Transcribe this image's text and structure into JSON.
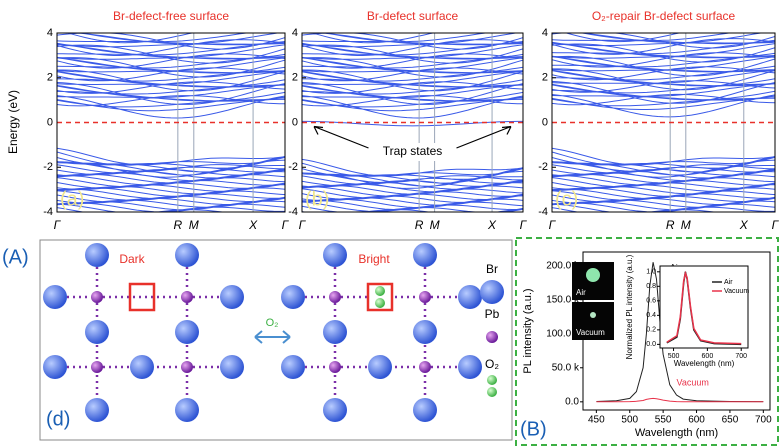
{
  "panel_A": {
    "label": "(A)",
    "ylabel": "Energy (eV)",
    "ylim": [
      -4,
      4
    ],
    "yticks": [
      -4,
      -2,
      0,
      2,
      4
    ],
    "kpoints": [
      "Γ",
      "R",
      "M",
      "X",
      "Γ"
    ],
    "plots": [
      {
        "title": "Br-defect-free surface",
        "tag": "(a)"
      },
      {
        "title": "Br-defect surface",
        "tag": "(b)",
        "annotation": "Trap states"
      },
      {
        "title": "O₂-repair Br-defect surface",
        "tag": "(c)"
      }
    ]
  },
  "panel_d": {
    "tag": "(d)",
    "left_label": "Dark",
    "right_label": "Bright",
    "arrow_label": "O₂",
    "legend": [
      "Br",
      "Pb",
      "O₂"
    ]
  },
  "panel_B": {
    "label": "(B)",
    "chart_data": {
      "type": "line",
      "xlabel": "Wavelength (nm)",
      "ylabel": "PL intensity (a.u.)",
      "xlim": [
        430,
        710
      ],
      "ylim": [
        -12000,
        220000
      ],
      "xticks": [
        450,
        500,
        550,
        600,
        650,
        700
      ],
      "yticks": [
        {
          "value": 0,
          "label": "0.0"
        },
        {
          "value": 50000,
          "label": "50.0 k"
        },
        {
          "value": 100000,
          "label": "100.0 k"
        },
        {
          "value": 150000,
          "label": "150.0 k"
        },
        {
          "value": 200000,
          "label": "200.0 k"
        }
      ],
      "x": [
        450,
        480,
        500,
        510,
        520,
        525,
        530,
        535,
        540,
        545,
        550,
        560,
        570,
        580,
        600,
        650,
        700
      ],
      "series": [
        {
          "name": "Air",
          "color": "#222222",
          "values": [
            500,
            1500,
            5000,
            15000,
            50000,
            100000,
            170000,
            205000,
            180000,
            120000,
            70000,
            25000,
            10000,
            4000,
            1500,
            500,
            300
          ]
        },
        {
          "name": "Vacuum",
          "color": "#e8334a",
          "values": [
            0,
            0,
            300,
            800,
            2000,
            3500,
            4500,
            5000,
            4500,
            3500,
            2500,
            1000,
            400,
            200,
            0,
            0,
            0
          ]
        }
      ]
    },
    "images": [
      "Air",
      "Vacuum"
    ],
    "inset": {
      "type": "line",
      "xlabel": "Wavelength (nm)",
      "ylabel": "Normalized PL intensity (a.u.)",
      "xlim": [
        460,
        720
      ],
      "ylim": [
        -0.05,
        1.08
      ],
      "xticks": [
        500,
        600,
        700
      ],
      "yticks": [
        {
          "value": 0,
          "label": "0.0"
        },
        0.2,
        0.4,
        0.6,
        0.8,
        {
          "value": 1,
          "label": "1.0"
        }
      ],
      "x": [
        480,
        510,
        520,
        530,
        535,
        540,
        550,
        560,
        580,
        620,
        700
      ],
      "series": [
        {
          "name": "Air",
          "color": "#222222",
          "values": [
            0.02,
            0.1,
            0.35,
            0.85,
            1.0,
            0.9,
            0.5,
            0.2,
            0.05,
            0.01,
            0
          ]
        },
        {
          "name": "Vacuum",
          "color": "#e8334a",
          "values": [
            0.03,
            0.12,
            0.38,
            0.88,
            0.98,
            0.92,
            0.52,
            0.22,
            0.06,
            0.02,
            0.01
          ]
        }
      ]
    }
  }
}
